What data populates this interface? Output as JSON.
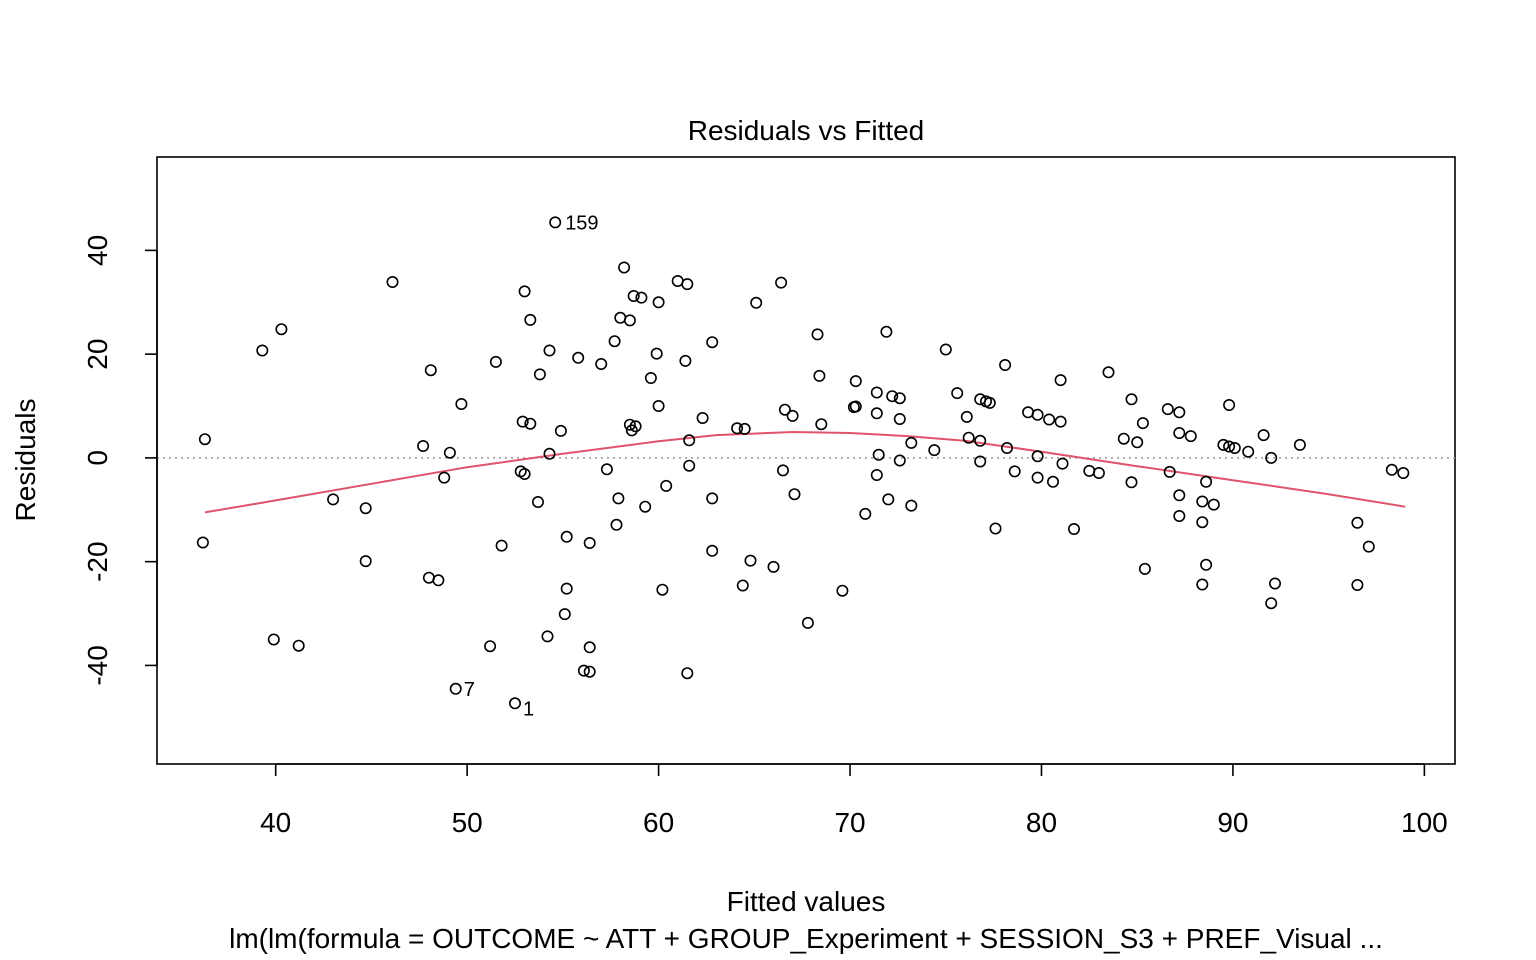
{
  "chart_data": {
    "type": "scatter",
    "title": "Residuals vs Fitted",
    "xlabel": "Fitted values",
    "ylabel": "Residuals",
    "subtitle": "lm(lm(formula = OUTCOME ~ ATT + GROUP_Experiment + SESSION_S3 + PREF_Visual ...",
    "xlim": [
      33.8,
      101.6
    ],
    "ylim": [
      -59,
      58
    ],
    "xticks": [
      40,
      50,
      60,
      70,
      80,
      90,
      100
    ],
    "yticks": [
      -40,
      -20,
      0,
      20,
      40
    ],
    "reference_line_y": 0,
    "colors": {
      "points": "#000000",
      "smooth": "#DF536B",
      "reference": "#9E9E9E"
    },
    "points": [
      [
        36.3,
        3.6
      ],
      [
        36.2,
        -16.3
      ],
      [
        39.3,
        20.7
      ],
      [
        40.3,
        24.8
      ],
      [
        39.9,
        -35.0
      ],
      [
        41.2,
        -36.2
      ],
      [
        43.0,
        -8.0
      ],
      [
        44.7,
        -9.7
      ],
      [
        44.7,
        -19.9
      ],
      [
        46.1,
        33.9
      ],
      [
        47.7,
        2.3
      ],
      [
        48.1,
        16.9
      ],
      [
        48.0,
        -23.1
      ],
      [
        48.5,
        -23.6
      ],
      [
        48.8,
        -3.8
      ],
      [
        49.1,
        1.0
      ],
      [
        49.7,
        10.4
      ],
      [
        51.5,
        18.5
      ],
      [
        51.8,
        -16.9
      ],
      [
        51.2,
        -36.3
      ],
      [
        52.8,
        -2.6
      ],
      [
        53.0,
        -3.1
      ],
      [
        52.9,
        7.0
      ],
      [
        53.3,
        6.6
      ],
      [
        53.3,
        26.6
      ],
      [
        53.0,
        32.1
      ],
      [
        53.8,
        16.1
      ],
      [
        53.7,
        -8.5
      ],
      [
        54.3,
        20.7
      ],
      [
        54.3,
        0.8
      ],
      [
        54.2,
        -34.4
      ],
      [
        54.9,
        5.2
      ],
      [
        55.2,
        -15.2
      ],
      [
        55.2,
        -25.2
      ],
      [
        55.1,
        -30.1
      ],
      [
        55.8,
        19.3
      ],
      [
        56.1,
        -41.0
      ],
      [
        56.4,
        -41.2
      ],
      [
        56.4,
        -36.5
      ],
      [
        56.4,
        -16.4
      ],
      [
        57.0,
        18.1
      ],
      [
        57.3,
        -2.2
      ],
      [
        57.7,
        22.5
      ],
      [
        57.8,
        -12.9
      ],
      [
        57.9,
        -7.8
      ],
      [
        58.0,
        27.0
      ],
      [
        58.2,
        36.7
      ],
      [
        58.5,
        26.5
      ],
      [
        58.5,
        6.4
      ],
      [
        58.6,
        5.3
      ],
      [
        58.8,
        6.1
      ],
      [
        58.7,
        31.2
      ],
      [
        59.1,
        30.9
      ],
      [
        59.3,
        -9.4
      ],
      [
        59.6,
        15.4
      ],
      [
        59.9,
        20.1
      ],
      [
        60.0,
        10.0
      ],
      [
        60.0,
        30.0
      ],
      [
        60.2,
        -25.4
      ],
      [
        60.4,
        -5.4
      ],
      [
        61.0,
        34.1
      ],
      [
        61.4,
        18.7
      ],
      [
        61.5,
        33.5
      ],
      [
        61.6,
        3.4
      ],
      [
        61.6,
        -1.5
      ],
      [
        61.5,
        -41.5
      ],
      [
        62.3,
        7.7
      ],
      [
        62.8,
        22.3
      ],
      [
        62.8,
        -7.8
      ],
      [
        62.8,
        -17.9
      ],
      [
        64.1,
        5.7
      ],
      [
        64.5,
        5.6
      ],
      [
        64.4,
        -24.6
      ],
      [
        64.8,
        -19.8
      ],
      [
        65.1,
        29.9
      ],
      [
        66.0,
        -21.0
      ],
      [
        66.4,
        33.8
      ],
      [
        66.5,
        -2.4
      ],
      [
        66.6,
        9.3
      ],
      [
        67.0,
        8.1
      ],
      [
        67.1,
        -7.0
      ],
      [
        67.8,
        -31.8
      ],
      [
        68.3,
        23.8
      ],
      [
        68.4,
        15.8
      ],
      [
        68.5,
        6.5
      ],
      [
        69.6,
        -25.6
      ],
      [
        70.2,
        9.8
      ],
      [
        70.3,
        9.9
      ],
      [
        70.3,
        14.8
      ],
      [
        70.8,
        -10.8
      ],
      [
        71.4,
        12.6
      ],
      [
        71.4,
        8.6
      ],
      [
        71.5,
        0.6
      ],
      [
        71.4,
        -3.3
      ],
      [
        71.9,
        24.3
      ],
      [
        72.0,
        -8.0
      ],
      [
        72.2,
        11.9
      ],
      [
        72.6,
        11.5
      ],
      [
        72.6,
        7.5
      ],
      [
        72.6,
        -0.5
      ],
      [
        73.2,
        2.9
      ],
      [
        73.2,
        -9.2
      ],
      [
        74.4,
        1.5
      ],
      [
        75.0,
        20.9
      ],
      [
        75.6,
        12.5
      ],
      [
        76.1,
        7.9
      ],
      [
        76.2,
        3.9
      ],
      [
        76.8,
        3.3
      ],
      [
        76.8,
        11.3
      ],
      [
        77.1,
        10.9
      ],
      [
        77.3,
        10.6
      ],
      [
        76.8,
        -0.7
      ],
      [
        77.6,
        -13.6
      ],
      [
        78.1,
        17.9
      ],
      [
        78.2,
        1.9
      ],
      [
        78.6,
        -2.6
      ],
      [
        79.3,
        8.8
      ],
      [
        79.8,
        8.3
      ],
      [
        79.8,
        0.3
      ],
      [
        79.8,
        -3.8
      ],
      [
        80.4,
        7.4
      ],
      [
        80.6,
        -4.6
      ],
      [
        81.0,
        15.0
      ],
      [
        81.0,
        7.0
      ],
      [
        81.1,
        -1.1
      ],
      [
        81.7,
        -13.7
      ],
      [
        82.5,
        -2.5
      ],
      [
        83.0,
        -2.9
      ],
      [
        83.5,
        16.5
      ],
      [
        84.3,
        3.7
      ],
      [
        84.7,
        11.3
      ],
      [
        84.7,
        -4.7
      ],
      [
        85.0,
        3.0
      ],
      [
        85.3,
        6.7
      ],
      [
        85.4,
        -21.4
      ],
      [
        86.6,
        9.4
      ],
      [
        86.7,
        -2.7
      ],
      [
        87.2,
        8.8
      ],
      [
        87.2,
        4.8
      ],
      [
        87.2,
        -7.2
      ],
      [
        87.2,
        -11.2
      ],
      [
        87.8,
        4.2
      ],
      [
        88.4,
        -8.4
      ],
      [
        88.4,
        -12.4
      ],
      [
        88.4,
        -24.4
      ],
      [
        88.6,
        -4.6
      ],
      [
        88.6,
        -20.6
      ],
      [
        89.0,
        -9.0
      ],
      [
        89.5,
        2.5
      ],
      [
        89.8,
        10.2
      ],
      [
        89.8,
        2.2
      ],
      [
        90.1,
        1.9
      ],
      [
        90.8,
        1.2
      ],
      [
        91.6,
        4.4
      ],
      [
        92.0,
        0.0
      ],
      [
        92.0,
        -28.0
      ],
      [
        92.2,
        -24.2
      ],
      [
        93.5,
        2.5
      ],
      [
        96.5,
        -12.5
      ],
      [
        96.5,
        -24.5
      ],
      [
        97.1,
        -17.1
      ],
      [
        98.3,
        -2.3
      ],
      [
        98.9,
        -2.9
      ]
    ],
    "labeled_points": [
      {
        "x": 54.6,
        "y": 45.4,
        "label": "159",
        "pos": "right"
      },
      {
        "x": 49.4,
        "y": -44.5,
        "label": "7",
        "pos": "right"
      },
      {
        "x": 52.5,
        "y": -47.3,
        "label": "1",
        "pos": "right"
      }
    ],
    "smooth_line": {
      "x": [
        36.3,
        40,
        45,
        50,
        55,
        60,
        63,
        67,
        70,
        73,
        76,
        80,
        85,
        90,
        95,
        99
      ],
      "y": [
        -10.5,
        -8.2,
        -5.0,
        -1.8,
        0.8,
        3.2,
        4.4,
        5.0,
        4.8,
        4.2,
        3.3,
        1.2,
        -1.6,
        -4.3,
        -7.0,
        -9.4
      ]
    }
  }
}
